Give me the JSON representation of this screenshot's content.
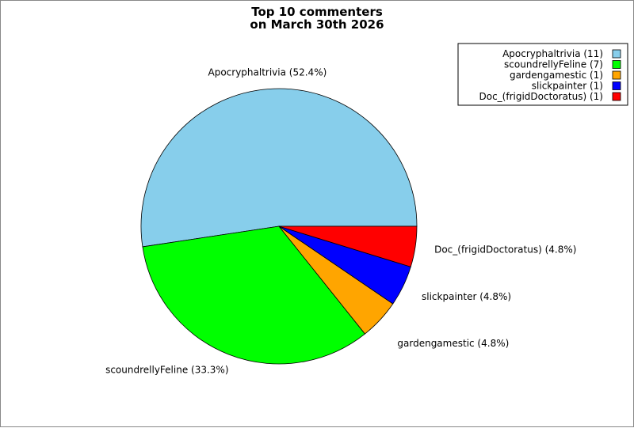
{
  "chart_data": {
    "type": "pie",
    "title_lines": [
      "Top 10 commenters",
      "on March 30th 2026"
    ],
    "categories": [
      "Apocryphaltrivia",
      "scoundrellyFeline",
      "gardengamestic",
      "slickpainter",
      "Doc_(frigidDoctoratus)"
    ],
    "values": [
      11,
      7,
      1,
      1,
      1
    ],
    "colors": [
      "#87ceeb",
      "#00ff00",
      "#ffa500",
      "#0000ff",
      "#ff0000"
    ],
    "slice_labels": [
      "Apocryphaltrivia (52.4%)",
      "scoundrellyFeline (33.3%)",
      "gardengamestic (4.8%)",
      "slickpainter (4.8%)",
      "Doc_(frigidDoctoratus) (4.8%)"
    ],
    "legend_labels": [
      "Apocryphaltrivia (11)",
      "scoundrellyFeline (7)",
      "gardengamestic (1)",
      "slickpainter (1)",
      "Doc_(frigidDoctoratus) (1)"
    ],
    "legend_position": "top-right"
  }
}
